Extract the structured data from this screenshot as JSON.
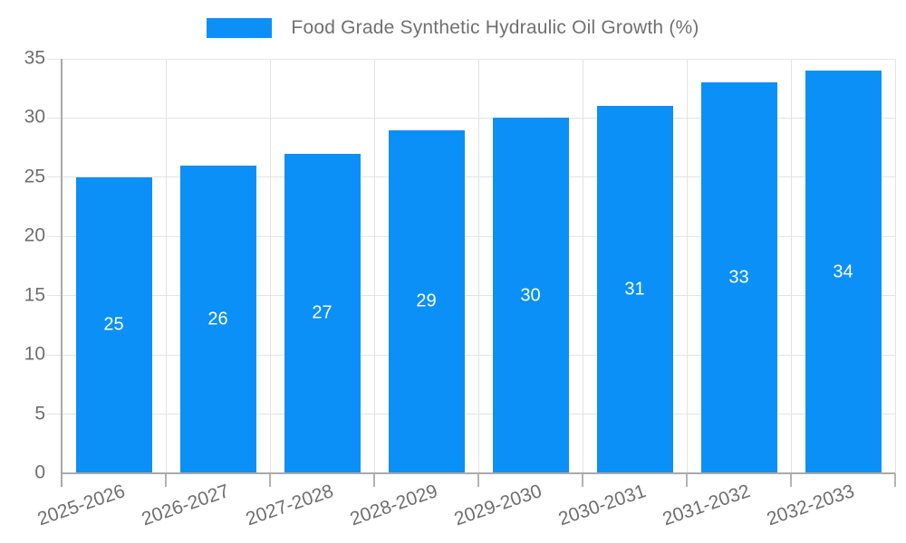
{
  "chart_data": {
    "type": "bar",
    "title": "Food Grade Synthetic Hydraulic Oil Growth (%)",
    "categories": [
      "2025-2026",
      "2026-2027",
      "2027-2028",
      "2028-2029",
      "2029-2030",
      "2030-2031",
      "2031-2032",
      "2032-2033"
    ],
    "values": [
      25,
      26,
      27,
      29,
      30,
      31,
      33,
      34
    ],
    "value_labels": [
      "25",
      "26",
      "27",
      "29",
      "30",
      "31",
      "33",
      "34"
    ],
    "xlabel": "",
    "ylabel": "",
    "ylim": [
      0,
      35
    ],
    "ytick_step": 5,
    "ytick_labels": [
      "0",
      "5",
      "10",
      "15",
      "20",
      "25",
      "30",
      "35"
    ],
    "grid": "on",
    "legend_position": "top-center",
    "value_labels_inside_bars": true,
    "colors": {
      "bar": "#0b90f8",
      "text": "#6f6f6f",
      "gridline": "#e3e3e3",
      "axis": "#a9a9a9",
      "value_label": "#ffffff",
      "background": "#ffffff"
    }
  }
}
